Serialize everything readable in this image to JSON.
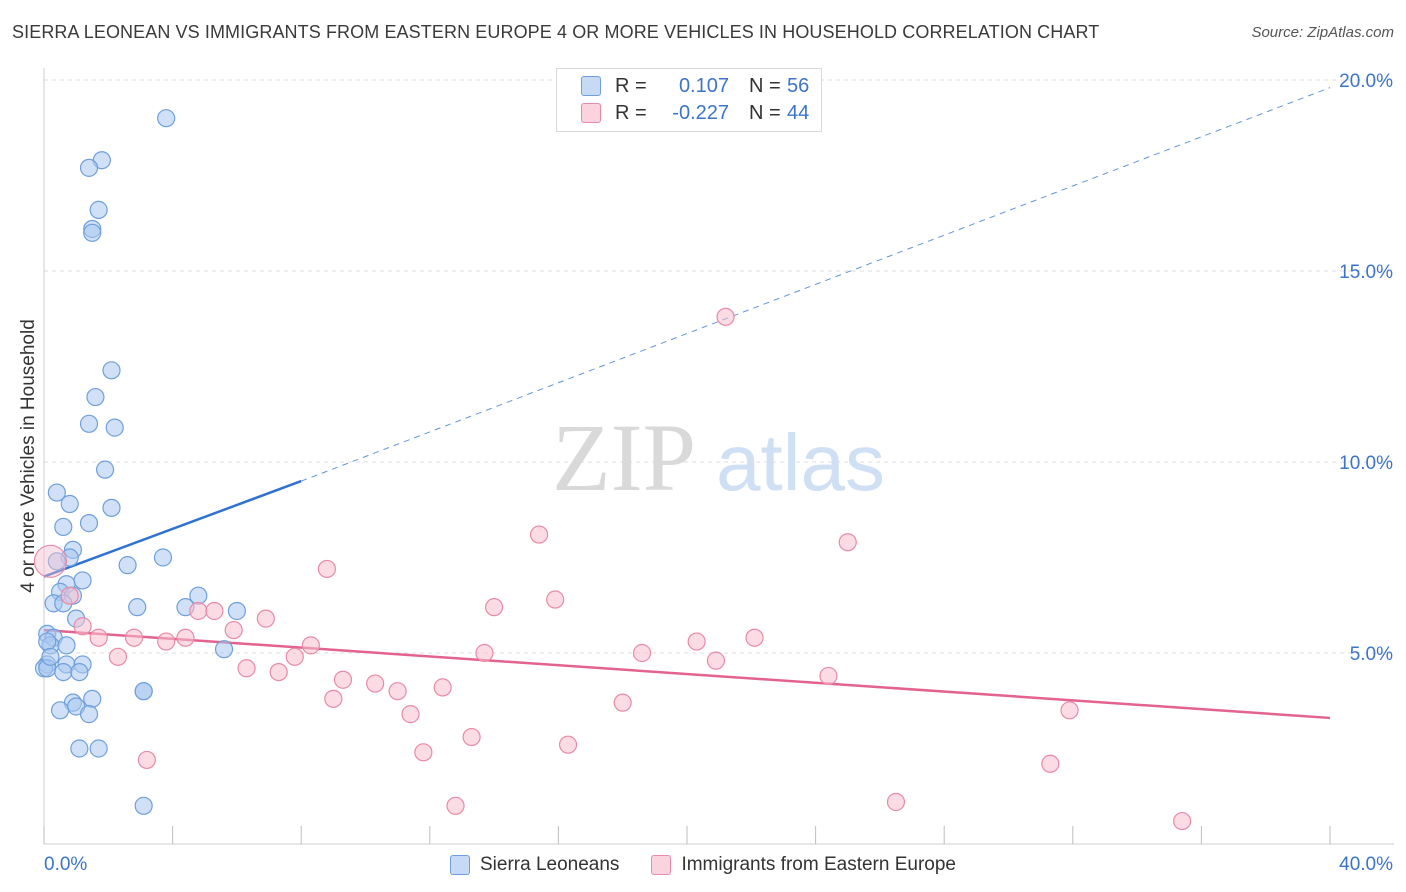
{
  "title": "SIERRA LEONEAN VS IMMIGRANTS FROM EASTERN EUROPE 4 OR MORE VEHICLES IN HOUSEHOLD CORRELATION CHART",
  "source": "Source: ZipAtlas.com",
  "watermark": {
    "zip": "ZIP",
    "atlas": "atlas"
  },
  "legend": {
    "rows": [
      {
        "r_label": "R =",
        "r_value": "0.107",
        "n_label": "N =",
        "n_value": "56"
      },
      {
        "r_label": "R =",
        "r_value": "-0.227",
        "n_label": "N =",
        "n_value": "44"
      }
    ]
  },
  "bottom_legend": [
    "Sierra Leoneans",
    "Immigrants from Eastern Europe"
  ],
  "colors": {
    "blue_fill": "#aac8f0",
    "blue_stroke": "#6f9fdc",
    "blue_line": "#2f72d0",
    "pink_fill": "#f7bfd0",
    "pink_stroke": "#e98aa8",
    "pink_line": "#e3628e",
    "tick_label": "#3b74c8",
    "grid": "#dcdcdc"
  },
  "chart_data": {
    "type": "scatter",
    "title": "SIERRA LEONEAN VS IMMIGRANTS FROM EASTERN EUROPE 4 OR MORE VEHICLES IN HOUSEHOLD CORRELATION CHART",
    "xlabel": "",
    "ylabel": "4 or more Vehicles in Household",
    "xlim": [
      0,
      40
    ],
    "ylim": [
      0,
      20
    ],
    "x_tick_labels": [
      "0.0%",
      "40.0%"
    ],
    "y_ticks": [
      5,
      10,
      15,
      20
    ],
    "y_tick_labels": [
      "5.0%",
      "10.0%",
      "15.0%",
      "20.0%"
    ],
    "series": [
      {
        "name": "Sierra Leoneans",
        "color": "blue",
        "trend": {
          "x": [
            0,
            8
          ],
          "y": [
            7.0,
            9.5
          ],
          "extend_to_x": 40,
          "extend_to_y": 19.8
        },
        "points": [
          [
            3.8,
            19.0
          ],
          [
            1.8,
            17.9
          ],
          [
            1.4,
            17.7
          ],
          [
            1.7,
            16.6
          ],
          [
            1.5,
            16.1
          ],
          [
            1.5,
            16.0
          ],
          [
            2.1,
            12.4
          ],
          [
            1.6,
            11.7
          ],
          [
            1.4,
            11.0
          ],
          [
            2.2,
            10.9
          ],
          [
            1.9,
            9.8
          ],
          [
            0.4,
            9.2
          ],
          [
            0.8,
            8.9
          ],
          [
            2.1,
            8.8
          ],
          [
            1.4,
            8.4
          ],
          [
            0.6,
            8.3
          ],
          [
            0.9,
            7.7
          ],
          [
            0.8,
            7.5
          ],
          [
            3.7,
            7.5
          ],
          [
            0.4,
            7.4
          ],
          [
            2.6,
            7.3
          ],
          [
            1.2,
            6.9
          ],
          [
            0.7,
            6.8
          ],
          [
            0.5,
            6.6
          ],
          [
            0.9,
            6.5
          ],
          [
            4.8,
            6.5
          ],
          [
            0.3,
            6.3
          ],
          [
            0.6,
            6.3
          ],
          [
            2.9,
            6.2
          ],
          [
            4.4,
            6.2
          ],
          [
            6.0,
            6.1
          ],
          [
            1.0,
            5.9
          ],
          [
            0.1,
            5.5
          ],
          [
            0.3,
            5.4
          ],
          [
            0.2,
            5.2
          ],
          [
            0.7,
            5.2
          ],
          [
            5.6,
            5.1
          ],
          [
            0.1,
            4.7
          ],
          [
            0.7,
            4.7
          ],
          [
            1.2,
            4.7
          ],
          [
            0.0,
            4.6
          ],
          [
            0.1,
            4.6
          ],
          [
            0.6,
            4.5
          ],
          [
            1.1,
            4.5
          ],
          [
            3.1,
            4.0
          ],
          [
            3.1,
            4.0
          ],
          [
            1.5,
            3.8
          ],
          [
            0.9,
            3.7
          ],
          [
            1.0,
            3.6
          ],
          [
            0.5,
            3.5
          ],
          [
            1.4,
            3.4
          ],
          [
            1.1,
            2.5
          ],
          [
            1.7,
            2.5
          ],
          [
            3.1,
            1.0
          ],
          [
            0.1,
            5.3
          ],
          [
            0.2,
            4.9
          ]
        ]
      },
      {
        "name": "Immigrants from Eastern Europe",
        "color": "pink",
        "trend": {
          "x": [
            0,
            40
          ],
          "y": [
            5.6,
            3.3
          ]
        },
        "points": [
          [
            21.2,
            13.8
          ],
          [
            15.4,
            8.1
          ],
          [
            25.0,
            7.9
          ],
          [
            0.2,
            7.4
          ],
          [
            8.8,
            7.2
          ],
          [
            15.9,
            6.4
          ],
          [
            14.0,
            6.2
          ],
          [
            0.8,
            6.5
          ],
          [
            4.8,
            6.1
          ],
          [
            5.3,
            6.1
          ],
          [
            6.9,
            5.9
          ],
          [
            1.2,
            5.7
          ],
          [
            5.9,
            5.6
          ],
          [
            1.7,
            5.4
          ],
          [
            2.8,
            5.4
          ],
          [
            4.4,
            5.4
          ],
          [
            3.8,
            5.3
          ],
          [
            20.3,
            5.3
          ],
          [
            22.1,
            5.4
          ],
          [
            8.3,
            5.2
          ],
          [
            13.7,
            5.0
          ],
          [
            18.6,
            5.0
          ],
          [
            2.3,
            4.9
          ],
          [
            7.8,
            4.9
          ],
          [
            20.9,
            4.8
          ],
          [
            6.3,
            4.6
          ],
          [
            7.3,
            4.5
          ],
          [
            9.3,
            4.3
          ],
          [
            24.4,
            4.4
          ],
          [
            10.3,
            4.2
          ],
          [
            12.4,
            4.1
          ],
          [
            11.0,
            4.0
          ],
          [
            9.0,
            3.8
          ],
          [
            18.0,
            3.7
          ],
          [
            11.4,
            3.4
          ],
          [
            31.9,
            3.5
          ],
          [
            13.3,
            2.8
          ],
          [
            16.3,
            2.6
          ],
          [
            11.8,
            2.4
          ],
          [
            3.2,
            2.2
          ],
          [
            31.3,
            2.1
          ],
          [
            26.5,
            1.1
          ],
          [
            12.8,
            1.0
          ],
          [
            35.4,
            0.6
          ]
        ]
      }
    ]
  }
}
